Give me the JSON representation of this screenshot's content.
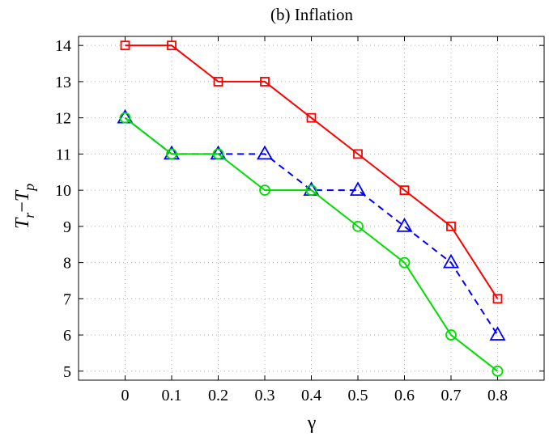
{
  "chart_data": {
    "type": "line",
    "title": "(b) Inflation",
    "xlabel": "γ",
    "ylabel": "T_r−T_p",
    "x": [
      0,
      0.1,
      0.2,
      0.3,
      0.4,
      0.5,
      0.6,
      0.7,
      0.8
    ],
    "x_tick_labels": [
      "0",
      "0.1",
      "0.2",
      "0.3",
      "0.4",
      "0.5",
      "0.6",
      "0.7",
      "0.8"
    ],
    "y_ticks": [
      5,
      6,
      7,
      8,
      9,
      10,
      11,
      12,
      13,
      14
    ],
    "xlim": [
      -0.1,
      0.9
    ],
    "ylim": [
      4.75,
      14.25
    ],
    "grid": true,
    "series": [
      {
        "color": "#ff0000",
        "marker": "square",
        "line_style": "solid",
        "values": [
          14,
          14,
          13,
          13,
          12,
          11,
          10,
          9,
          7
        ]
      },
      {
        "color": "#0000ff",
        "marker": "triangle",
        "line_style": "dashed",
        "values": [
          12,
          11,
          11,
          11,
          10,
          10,
          9,
          8,
          6
        ]
      },
      {
        "color": "#00dd00",
        "marker": "circle",
        "line_style": "solid",
        "values": [
          12,
          11,
          11,
          10,
          10,
          9,
          8,
          6,
          5
        ]
      }
    ]
  }
}
